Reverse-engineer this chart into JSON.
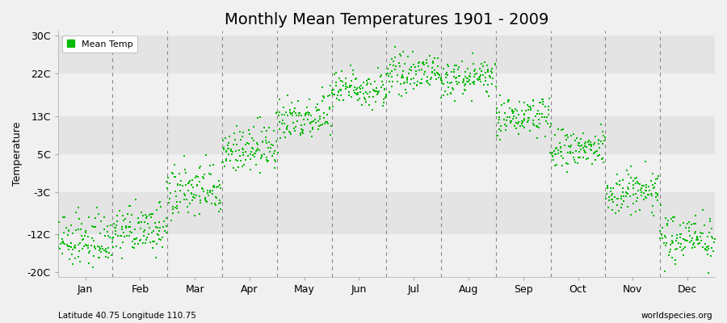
{
  "title": "Monthly Mean Temperatures 1901 - 2009",
  "ylabel": "Temperature",
  "xlabel_bottom_left": "Latitude 40.75 Longitude 110.75",
  "xlabel_bottom_right": "worldspecies.org",
  "legend_label": "Mean Temp",
  "ytick_labels": [
    "-20C",
    "-12C",
    "-3C",
    "5C",
    "13C",
    "22C",
    "30C"
  ],
  "ytick_values": [
    -20,
    -12,
    -3,
    5,
    13,
    22,
    30
  ],
  "month_names": [
    "Jan",
    "Feb",
    "Mar",
    "Apr",
    "May",
    "Jun",
    "Jul",
    "Aug",
    "Sep",
    "Oct",
    "Nov",
    "Dec"
  ],
  "dot_color": "#00BB00",
  "bg_color": "#F0F0F0",
  "band_light": "#F0F0F0",
  "band_dark": "#E4E4E4",
  "title_fontsize": 14,
  "label_fontsize": 9,
  "tick_fontsize": 9,
  "monthly_mean_values": {
    "1": -14.0,
    "2": -11.5,
    "3": -3.5,
    "4": 5.5,
    "5": 12.5,
    "6": 18.5,
    "7": 21.5,
    "8": 20.5,
    "9": 12.5,
    "10": 5.5,
    "11": -3.5,
    "12": -13.0
  },
  "monthly_spread": {
    "1": 2.8,
    "2": 2.5,
    "3": 3.0,
    "4": 2.5,
    "5": 2.5,
    "6": 2.0,
    "7": 1.8,
    "8": 1.8,
    "9": 2.0,
    "10": 2.2,
    "11": 2.5,
    "12": 2.5
  },
  "warming_trend": 0.8
}
